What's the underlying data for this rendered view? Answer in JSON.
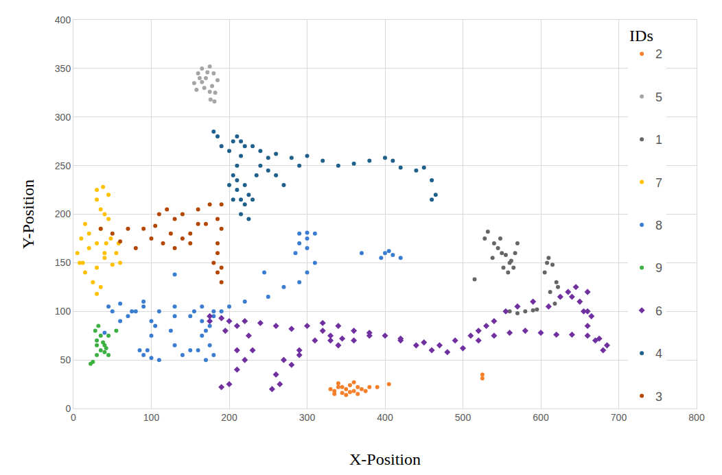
{
  "chart_data": {
    "type": "scatter",
    "x_label": "X-Position",
    "y_label": "Y-Position",
    "xlim": [
      0,
      800
    ],
    "ylim": [
      0,
      400
    ],
    "xticks": [
      0,
      100,
      200,
      300,
      400,
      500,
      600,
      700,
      800
    ],
    "yticks": [
      0,
      50,
      100,
      150,
      200,
      250,
      300,
      350,
      400
    ],
    "grid": true,
    "legend": "upper right",
    "legend_title": "IDs",
    "series": [
      {
        "name": "2",
        "color": "#f4802c",
        "marker": "circle",
        "x": [
          330,
          335,
          340,
          345,
          350,
          355,
          360,
          365,
          370,
          340,
          350,
          360,
          345,
          375,
          380,
          390,
          405,
          525,
          525,
          335,
          355,
          365
        ],
        "y": [
          20,
          18,
          22,
          16,
          20,
          24,
          18,
          22,
          20,
          26,
          14,
          27,
          22,
          18,
          22,
          22,
          25,
          31,
          35,
          15,
          17,
          15
        ]
      },
      {
        "name": "5",
        "color": "#a5a5a5",
        "marker": "circle",
        "x": [
          155,
          160,
          165,
          170,
          175,
          180,
          185,
          158,
          168,
          178,
          162,
          172,
          182,
          165,
          175,
          176,
          181
        ],
        "y": [
          335,
          345,
          350,
          340,
          352,
          345,
          338,
          328,
          330,
          332,
          340,
          346,
          325,
          336,
          326,
          318,
          316
        ]
      },
      {
        "name": "1",
        "color": "#666666",
        "marker": "circle",
        "x": [
          528,
          532,
          540,
          545,
          550,
          555,
          560,
          565,
          570,
          548,
          538,
          558,
          515,
          552,
          562,
          567,
          560,
          570,
          580,
          590,
          595,
          605,
          610,
          615,
          620,
          625,
          612,
          618,
          622,
          608
        ],
        "y": [
          175,
          182,
          170,
          165,
          160,
          158,
          150,
          145,
          170,
          175,
          155,
          140,
          133,
          145,
          152,
          160,
          100,
          98,
          100,
          101,
          102,
          140,
          155,
          148,
          130,
          115,
          120,
          108,
          125,
          150
        ]
      },
      {
        "name": "7",
        "color": "#ffc000",
        "marker": "circle",
        "x": [
          30,
          38,
          45,
          40,
          35,
          42,
          55,
          60,
          50,
          40,
          30,
          20,
          15,
          10,
          5,
          8,
          15,
          25,
          30,
          35,
          30,
          40,
          45,
          35,
          30,
          20,
          12,
          48,
          58
        ],
        "y": [
          225,
          228,
          220,
          200,
          185,
          170,
          160,
          150,
          148,
          160,
          170,
          180,
          190,
          175,
          160,
          150,
          140,
          130,
          118,
          125,
          145,
          155,
          195,
          205,
          215,
          165,
          150,
          175,
          170
        ]
      },
      {
        "name": "8",
        "color": "#3a7dd0",
        "marker": "circle",
        "x": [
          400,
          410,
          420,
          395,
          405,
          370,
          310,
          300,
          290,
          285,
          300,
          310,
          300,
          290,
          270,
          250,
          220,
          200,
          190,
          180,
          175,
          170,
          165,
          160,
          170,
          180,
          150,
          140,
          130,
          125,
          130,
          130,
          110,
          100,
          90,
          80,
          70,
          60,
          50,
          45,
          60,
          75,
          90,
          105,
          100,
          95,
          90,
          100,
          110,
          85,
          175,
          165,
          180,
          245,
          290,
          300,
          130,
          165,
          155,
          150,
          40
        ],
        "y": [
          160,
          158,
          155,
          155,
          162,
          160,
          180,
          175,
          170,
          160,
          165,
          150,
          140,
          130,
          125,
          115,
          110,
          105,
          100,
          95,
          85,
          80,
          75,
          60,
          50,
          55,
          60,
          55,
          65,
          80,
          95,
          105,
          100,
          90,
          110,
          100,
          95,
          90,
          100,
          105,
          108,
          100,
          105,
          85,
          75,
          60,
          55,
          52,
          50,
          60,
          65,
          90,
          100,
          140,
          180,
          181,
          138,
          105,
          100,
          95,
          78
        ]
      },
      {
        "name": "9",
        "color": "#3cb043",
        "marker": "circle",
        "x": [
          25,
          22,
          30,
          35,
          40,
          30,
          35,
          32,
          28,
          40,
          45,
          38,
          55,
          45,
          30,
          42
        ],
        "y": [
          48,
          46,
          55,
          60,
          58,
          70,
          75,
          85,
          80,
          65,
          55,
          68,
          80,
          75,
          65,
          62
        ]
      },
      {
        "name": "6",
        "color": "#7030a0",
        "marker": "diamond",
        "x": [
          175,
          190,
          200,
          220,
          240,
          260,
          280,
          300,
          320,
          340,
          360,
          380,
          400,
          420,
          440,
          460,
          480,
          500,
          520,
          540,
          560,
          580,
          600,
          620,
          640,
          660,
          675,
          685,
          680,
          670,
          660,
          655,
          650,
          645,
          635,
          625,
          610,
          590,
          570,
          555,
          540,
          530,
          520,
          510,
          490,
          470,
          450,
          420,
          380,
          360,
          340,
          330,
          320,
          310,
          290,
          270,
          260,
          255,
          265,
          280,
          290,
          230,
          220,
          210,
          200,
          190,
          210,
          225,
          210,
          195,
          175,
          330,
          345,
          640,
          660,
          665,
          660
        ],
        "y": [
          95,
          93,
          90,
          90,
          88,
          85,
          82,
          85,
          88,
          85,
          80,
          78,
          75,
          70,
          65,
          60,
          58,
          62,
          70,
          75,
          78,
          80,
          78,
          76,
          76,
          75,
          72,
          65,
          60,
          70,
          85,
          100,
          110,
          125,
          120,
          115,
          105,
          110,
          105,
          100,
          90,
          85,
          80,
          75,
          70,
          65,
          68,
          72,
          75,
          70,
          65,
          75,
          80,
          70,
          60,
          50,
          35,
          20,
          25,
          45,
          55,
          60,
          50,
          40,
          25,
          22,
          60,
          75,
          85,
          80,
          90,
          70,
          72,
          115,
          120,
          95,
          100
        ]
      },
      {
        "name": "4",
        "color": "#1f5f8b",
        "marker": "circle",
        "x": [
          180,
          185,
          190,
          200,
          205,
          210,
          215,
          220,
          215,
          210,
          205,
          210,
          220,
          225,
          220,
          215,
          225,
          230,
          235,
          240,
          250,
          260,
          280,
          300,
          320,
          340,
          360,
          380,
          400,
          410,
          420,
          440,
          450,
          460,
          465,
          460,
          230,
          240,
          210,
          205,
          200,
          215,
          260,
          270,
          250,
          290
        ],
        "y": [
          285,
          280,
          270,
          265,
          275,
          280,
          275,
          270,
          260,
          250,
          240,
          235,
          230,
          220,
          210,
          200,
          195,
          215,
          240,
          250,
          258,
          262,
          258,
          260,
          255,
          250,
          252,
          255,
          258,
          255,
          248,
          245,
          248,
          235,
          220,
          215,
          270,
          265,
          225,
          215,
          230,
          215,
          240,
          230,
          245,
          250
        ]
      },
      {
        "name": "3",
        "color": "#b34700",
        "marker": "circle",
        "x": [
          35,
          50,
          60,
          70,
          90,
          105,
          110,
          120,
          130,
          125,
          140,
          150,
          130,
          115,
          160,
          160,
          175,
          190,
          185,
          190,
          170,
          185,
          180,
          185,
          190,
          185,
          190,
          150,
          140,
          100,
          80
        ],
        "y": [
          185,
          180,
          172,
          185,
          185,
          188,
          200,
          205,
          195,
          180,
          175,
          170,
          165,
          170,
          190,
          205,
          210,
          210,
          195,
          185,
          190,
          170,
          150,
          140,
          130,
          160,
          145,
          180,
          200,
          175,
          165
        ]
      }
    ]
  }
}
